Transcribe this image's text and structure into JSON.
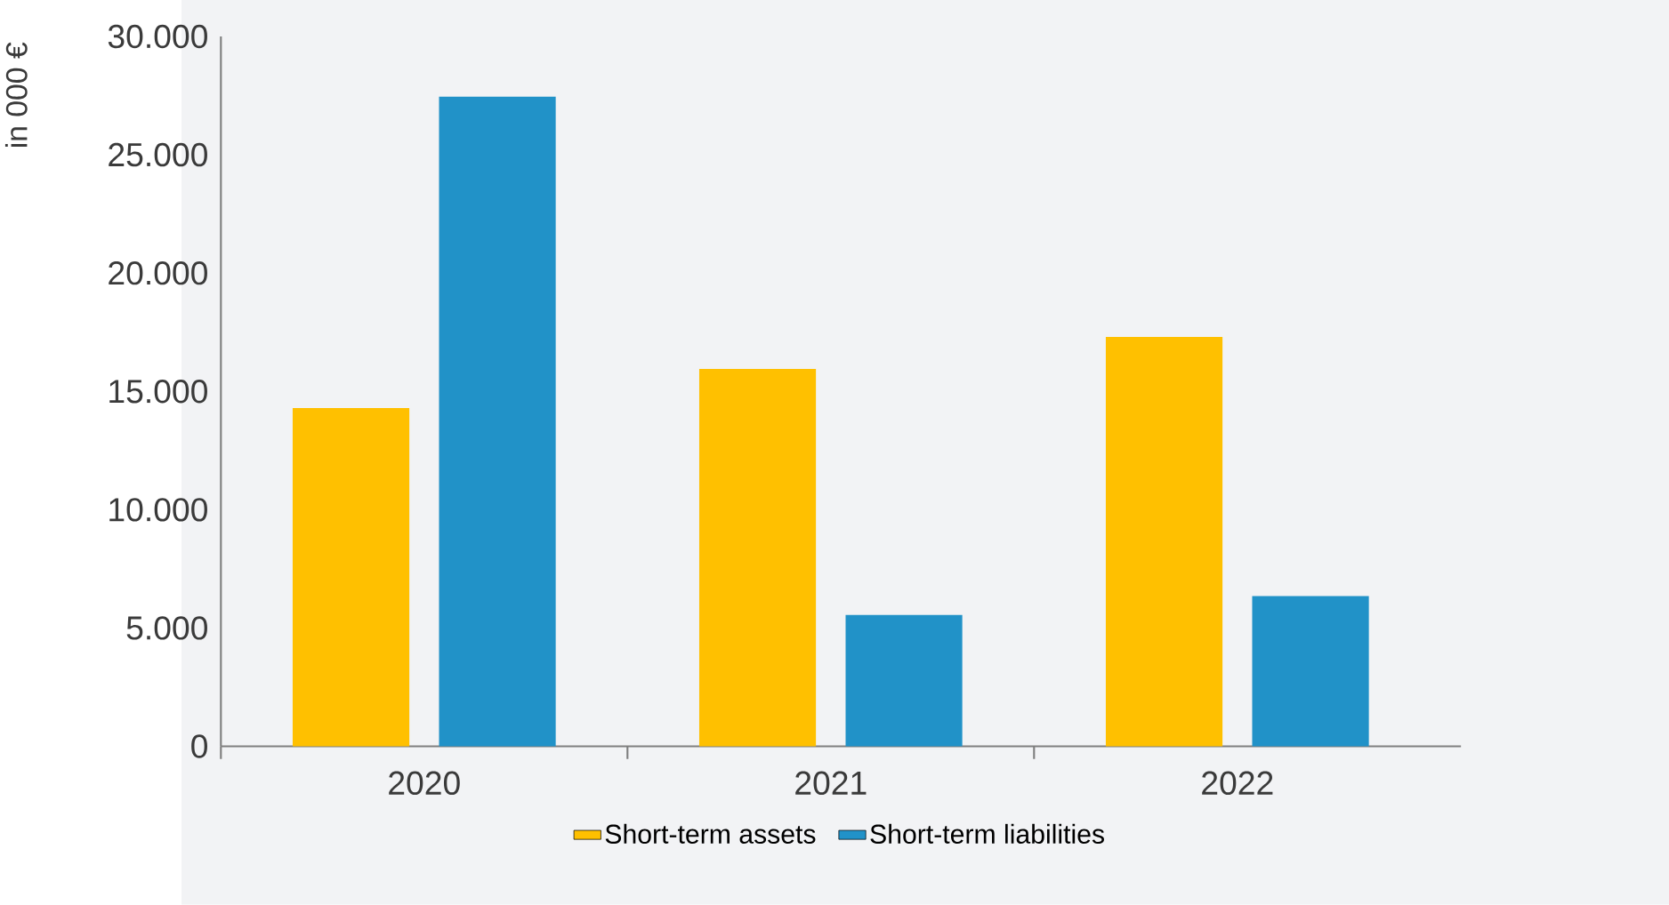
{
  "chart_data": {
    "type": "bar",
    "ylabel": "in 000 €",
    "categories": [
      "2020",
      "2021",
      "2022"
    ],
    "series": [
      {
        "name": "Short-term assets",
        "color": "#ffc000",
        "values": [
          14300,
          15950,
          17300
        ]
      },
      {
        "name": "Short-term liabilities",
        "color": "#2192c8",
        "values": [
          27450,
          5550,
          6350
        ]
      }
    ],
    "ylim": [
      0,
      30000
    ],
    "yticks": [
      0,
      {
        "value": 5000,
        "label": "5.000"
      },
      {
        "value": 10000,
        "label": "10.000"
      },
      {
        "value": 15000,
        "label": "15.000"
      },
      {
        "value": 20000,
        "label": "20.000"
      },
      {
        "value": 25000,
        "label": "25.000"
      },
      {
        "value": 30000,
        "label": "30.000"
      }
    ],
    "grid": false,
    "legend": "bottom"
  }
}
